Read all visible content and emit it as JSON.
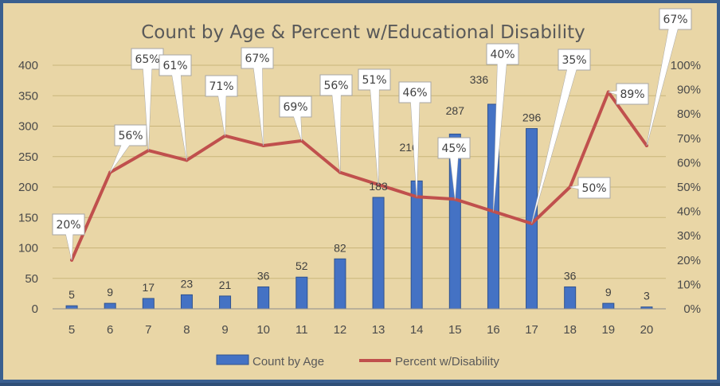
{
  "chart_data": {
    "type": "bar+line",
    "title": "Count by Age & Percent w/Educational Disability",
    "categories": [
      "5",
      "6",
      "7",
      "8",
      "9",
      "10",
      "11",
      "12",
      "13",
      "14",
      "15",
      "16",
      "17",
      "18",
      "19",
      "20"
    ],
    "series": [
      {
        "name": "Count by Age",
        "type": "bar",
        "axis": "left",
        "color": "#4472c4",
        "values": [
          5,
          9,
          17,
          23,
          21,
          36,
          52,
          82,
          183,
          210,
          287,
          336,
          296,
          36,
          9,
          3
        ]
      },
      {
        "name": "Percent w/Disability",
        "type": "line",
        "axis": "right",
        "color": "#c0504d",
        "values": [
          20,
          56,
          65,
          61,
          71,
          67,
          69,
          56,
          51,
          46,
          45,
          40,
          35,
          50,
          89,
          67
        ]
      }
    ],
    "y_left": {
      "min": 0,
      "max": 400,
      "step": 50,
      "ticks": [
        "0",
        "50",
        "100",
        "150",
        "200",
        "250",
        "300",
        "350",
        "400"
      ]
    },
    "y_right": {
      "min": 0,
      "max": 100,
      "step": 10,
      "ticks": [
        "0%",
        "10%",
        "20%",
        "30%",
        "40%",
        "50%",
        "60%",
        "70%",
        "80%",
        "90%",
        "100%"
      ]
    },
    "legend": {
      "position": "bottom",
      "items": [
        "Count by Age",
        "Percent w/Disability"
      ]
    }
  }
}
